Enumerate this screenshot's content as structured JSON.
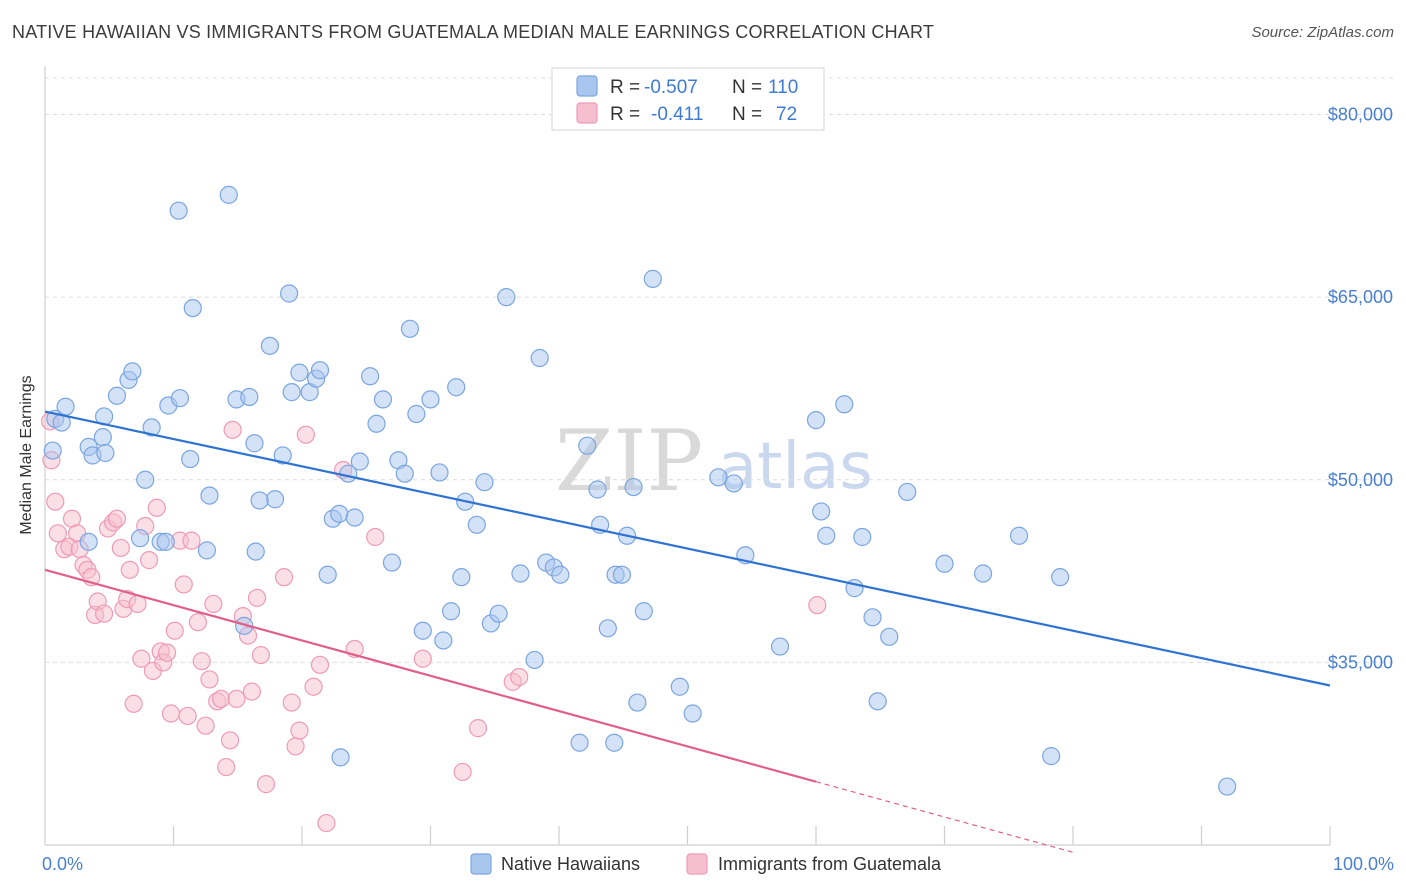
{
  "title": "NATIVE HAWAIIAN VS IMMIGRANTS FROM GUATEMALA MEDIAN MALE EARNINGS CORRELATION CHART",
  "source": "Source: ZipAtlas.com",
  "watermark": {
    "zip": "ZIP",
    "atlas": "atlas"
  },
  "colors": {
    "blue_fill": "#a9c6ef",
    "blue_stroke": "#7aa6e0",
    "blue_line": "#2f73d1",
    "pink_fill": "#f6bfd0",
    "pink_stroke": "#ee9bb6",
    "pink_line": "#e0608a",
    "grid": "#dcdcdc",
    "tick_text": "#4a7fd0"
  },
  "stats_legend": [
    {
      "r_label": "R =",
      "r_value": "-0.507",
      "n_label": "N =",
      "n_value": "110"
    },
    {
      "r_label": "R =",
      "r_value": "-0.411",
      "n_label": "N =",
      "n_value": "72"
    }
  ],
  "chart_data": {
    "type": "scatter",
    "title": "NATIVE HAWAIIAN VS IMMIGRANTS FROM GUATEMALA MEDIAN MALE EARNINGS CORRELATION CHART",
    "xlabel": "",
    "ylabel": "Median Male Earnings",
    "xlim": [
      0,
      100
    ],
    "ylim": [
      20000,
      83000
    ],
    "x_tick_labels": [
      "0.0%",
      "100.0%"
    ],
    "y_ticks": [
      35000,
      50000,
      65000,
      80000
    ],
    "y_tick_labels": [
      "$35,000",
      "$50,000",
      "$65,000",
      "$80,000"
    ],
    "legend_position": "bottom-center",
    "series": [
      {
        "name": "Native Hawaiians",
        "color": "#a9c6ef",
        "r": -0.507,
        "n": 110,
        "trend": {
          "x0": 0,
          "y0": 55600,
          "x1": 100,
          "y1": 33100
        },
        "points": [
          [
            0.8,
            55.0
          ],
          [
            1.6,
            56.0
          ],
          [
            1.3,
            54.7
          ],
          [
            4.6,
            55.2
          ],
          [
            4.5,
            53.5
          ],
          [
            3.4,
            52.7
          ],
          [
            3.7,
            52.0
          ],
          [
            4.7,
            52.2
          ],
          [
            5.6,
            56.9
          ],
          [
            6.5,
            58.2
          ],
          [
            6.8,
            58.9
          ],
          [
            8.3,
            54.3
          ],
          [
            7.8,
            50.0
          ],
          [
            7.4,
            45.2
          ],
          [
            9.0,
            44.9
          ],
          [
            9.6,
            56.1
          ],
          [
            10.5,
            56.7
          ],
          [
            11.3,
            51.7
          ],
          [
            12.8,
            48.7
          ],
          [
            12.6,
            44.2
          ],
          [
            10.4,
            72.1
          ],
          [
            11.5,
            64.1
          ],
          [
            14.3,
            73.4
          ],
          [
            14.9,
            56.6
          ],
          [
            15.9,
            56.8
          ],
          [
            16.3,
            53.0
          ],
          [
            16.4,
            44.1
          ],
          [
            17.5,
            61.0
          ],
          [
            17.9,
            48.4
          ],
          [
            18.5,
            52.0
          ],
          [
            15.5,
            38.0
          ],
          [
            19.2,
            57.2
          ],
          [
            19.0,
            65.3
          ],
          [
            19.8,
            58.8
          ],
          [
            20.6,
            57.2
          ],
          [
            21.1,
            58.3
          ],
          [
            21.4,
            59.0
          ],
          [
            22.0,
            42.2
          ],
          [
            22.4,
            46.8
          ],
          [
            22.9,
            47.2
          ],
          [
            23.6,
            50.5
          ],
          [
            24.1,
            46.9
          ],
          [
            24.5,
            51.5
          ],
          [
            25.3,
            58.5
          ],
          [
            25.8,
            54.6
          ],
          [
            26.3,
            56.6
          ],
          [
            27.0,
            43.2
          ],
          [
            27.5,
            51.6
          ],
          [
            28.0,
            50.5
          ],
          [
            28.4,
            62.4
          ],
          [
            28.9,
            55.4
          ],
          [
            29.4,
            37.6
          ],
          [
            30.0,
            56.6
          ],
          [
            30.7,
            50.6
          ],
          [
            31.0,
            36.8
          ],
          [
            31.6,
            39.2
          ],
          [
            32.0,
            57.6
          ],
          [
            32.4,
            42.0
          ],
          [
            32.7,
            48.2
          ],
          [
            33.6,
            46.3
          ],
          [
            34.2,
            49.8
          ],
          [
            34.7,
            38.2
          ],
          [
            35.3,
            39.0
          ],
          [
            35.9,
            65.0
          ],
          [
            37.0,
            42.3
          ],
          [
            38.1,
            35.2
          ],
          [
            38.5,
            60.0
          ],
          [
            39.0,
            43.2
          ],
          [
            39.6,
            42.8
          ],
          [
            40.1,
            42.2
          ],
          [
            41.6,
            28.4
          ],
          [
            42.2,
            52.8
          ],
          [
            43.0,
            49.2
          ],
          [
            43.2,
            46.3
          ],
          [
            43.8,
            37.8
          ],
          [
            44.4,
            42.2
          ],
          [
            44.9,
            42.2
          ],
          [
            45.3,
            45.4
          ],
          [
            45.8,
            49.4
          ],
          [
            46.1,
            31.7
          ],
          [
            46.6,
            39.2
          ],
          [
            47.3,
            66.5
          ],
          [
            49.4,
            33.0
          ],
          [
            50.4,
            30.8
          ],
          [
            52.4,
            50.2
          ],
          [
            53.6,
            49.7
          ],
          [
            54.5,
            43.8
          ],
          [
            57.2,
            36.3
          ],
          [
            60.0,
            54.9
          ],
          [
            60.4,
            47.4
          ],
          [
            60.8,
            45.4
          ],
          [
            62.2,
            56.2
          ],
          [
            63.0,
            41.1
          ],
          [
            63.6,
            45.3
          ],
          [
            64.4,
            38.7
          ],
          [
            64.8,
            31.8
          ],
          [
            65.7,
            37.1
          ],
          [
            67.1,
            49.0
          ],
          [
            70.0,
            43.1
          ],
          [
            73.0,
            42.3
          ],
          [
            75.8,
            45.4
          ],
          [
            78.3,
            27.3
          ],
          [
            79.0,
            42.0
          ],
          [
            92.0,
            24.8
          ],
          [
            0.6,
            52.4
          ],
          [
            23.0,
            27.2
          ],
          [
            9.4,
            44.9
          ],
          [
            3.4,
            44.9
          ],
          [
            16.7,
            48.3
          ],
          [
            44.3,
            28.4
          ]
        ]
      },
      {
        "name": "Immigrants from Guatemala",
        "color": "#f6bfd0",
        "r": -0.411,
        "n": 72,
        "trend": {
          "x0": 0,
          "y0": 42600,
          "x1": 60,
          "y1": 25200,
          "dash_x1": 80,
          "dash_y1": 19400
        },
        "points": [
          [
            0.4,
            54.8
          ],
          [
            0.5,
            51.6
          ],
          [
            0.8,
            48.2
          ],
          [
            1.0,
            45.6
          ],
          [
            1.5,
            44.3
          ],
          [
            1.9,
            44.5
          ],
          [
            2.1,
            46.8
          ],
          [
            2.5,
            45.6
          ],
          [
            2.7,
            44.3
          ],
          [
            3.0,
            43.0
          ],
          [
            3.3,
            42.6
          ],
          [
            3.6,
            42.0
          ],
          [
            3.9,
            38.9
          ],
          [
            4.1,
            40.0
          ],
          [
            4.6,
            39.0
          ],
          [
            4.9,
            46.0
          ],
          [
            5.3,
            46.5
          ],
          [
            5.6,
            46.8
          ],
          [
            5.9,
            44.4
          ],
          [
            6.1,
            39.4
          ],
          [
            6.4,
            40.2
          ],
          [
            6.6,
            42.6
          ],
          [
            6.9,
            31.6
          ],
          [
            7.2,
            39.8
          ],
          [
            7.5,
            35.3
          ],
          [
            7.8,
            46.2
          ],
          [
            8.1,
            43.4
          ],
          [
            8.4,
            34.3
          ],
          [
            8.7,
            47.7
          ],
          [
            9.0,
            35.9
          ],
          [
            9.2,
            35.0
          ],
          [
            9.5,
            35.8
          ],
          [
            9.8,
            30.8
          ],
          [
            10.1,
            37.6
          ],
          [
            10.5,
            45.0
          ],
          [
            10.8,
            41.4
          ],
          [
            11.1,
            30.6
          ],
          [
            11.4,
            45.0
          ],
          [
            11.9,
            38.3
          ],
          [
            12.2,
            35.1
          ],
          [
            12.5,
            29.8
          ],
          [
            12.8,
            33.6
          ],
          [
            13.1,
            39.8
          ],
          [
            13.4,
            31.8
          ],
          [
            13.7,
            32.0
          ],
          [
            14.1,
            26.4
          ],
          [
            14.4,
            28.6
          ],
          [
            14.6,
            54.1
          ],
          [
            14.9,
            32.0
          ],
          [
            15.4,
            38.8
          ],
          [
            15.8,
            37.2
          ],
          [
            16.1,
            32.6
          ],
          [
            16.5,
            40.3
          ],
          [
            16.8,
            35.6
          ],
          [
            17.2,
            25.0
          ],
          [
            18.6,
            42.0
          ],
          [
            19.2,
            31.7
          ],
          [
            19.5,
            28.1
          ],
          [
            19.8,
            29.4
          ],
          [
            20.3,
            53.7
          ],
          [
            20.9,
            33.0
          ],
          [
            21.4,
            34.8
          ],
          [
            21.9,
            21.8
          ],
          [
            23.2,
            50.8
          ],
          [
            24.1,
            36.1
          ],
          [
            25.7,
            45.3
          ],
          [
            29.4,
            35.3
          ],
          [
            32.5,
            26.0
          ],
          [
            33.7,
            29.6
          ],
          [
            36.4,
            33.4
          ],
          [
            36.9,
            33.8
          ],
          [
            60.1,
            39.7
          ]
        ]
      }
    ]
  },
  "legend": {
    "blue_label": "Native Hawaiians",
    "pink_label": "Immigrants from Guatemala"
  }
}
